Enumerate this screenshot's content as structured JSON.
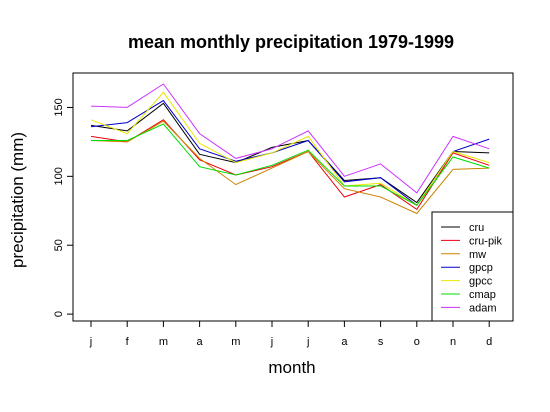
{
  "chart_data": {
    "type": "line",
    "title": "mean monthly precipitation 1979-1999",
    "xlabel": "month",
    "ylabel": "precipitation (mm)",
    "categories": [
      "j",
      "f",
      "m",
      "a",
      "m",
      "j",
      "j",
      "a",
      "s",
      "o",
      "n",
      "d"
    ],
    "ylim": [
      -5,
      175
    ],
    "yticks": [
      0,
      50,
      100,
      150
    ],
    "grid": false,
    "legend_position": "bottom-right",
    "series": [
      {
        "name": "cru",
        "color": "#000000",
        "values": [
          137,
          133,
          153,
          116,
          110,
          121,
          126,
          97,
          99,
          81,
          118,
          117
        ]
      },
      {
        "name": "cru-pik",
        "color": "#e8000b",
        "values": [
          129,
          125,
          141,
          112,
          101,
          107,
          118,
          85,
          94,
          76,
          117,
          108
        ]
      },
      {
        "name": "mw",
        "color": "#cc8400",
        "values": [
          126,
          125,
          140,
          113,
          94,
          106,
          118,
          91,
          85,
          73,
          105,
          106
        ]
      },
      {
        "name": "gpcp",
        "color": "#0000cc",
        "values": [
          136,
          139,
          155,
          120,
          111,
          117,
          126,
          96,
          99,
          79,
          118,
          127
        ]
      },
      {
        "name": "gpcc",
        "color": "#e8e800",
        "values": [
          141,
          131,
          161,
          124,
          110,
          117,
          129,
          93,
          95,
          79,
          118,
          110
        ]
      },
      {
        "name": "cmap",
        "color": "#00dd00",
        "values": [
          126,
          126,
          138,
          107,
          101,
          108,
          119,
          93,
          93,
          79,
          114,
          106
        ]
      },
      {
        "name": "adam",
        "color": "#cc33ff",
        "values": [
          151,
          150,
          167,
          131,
          113,
          120,
          133,
          100,
          109,
          88,
          129,
          120
        ]
      }
    ]
  }
}
